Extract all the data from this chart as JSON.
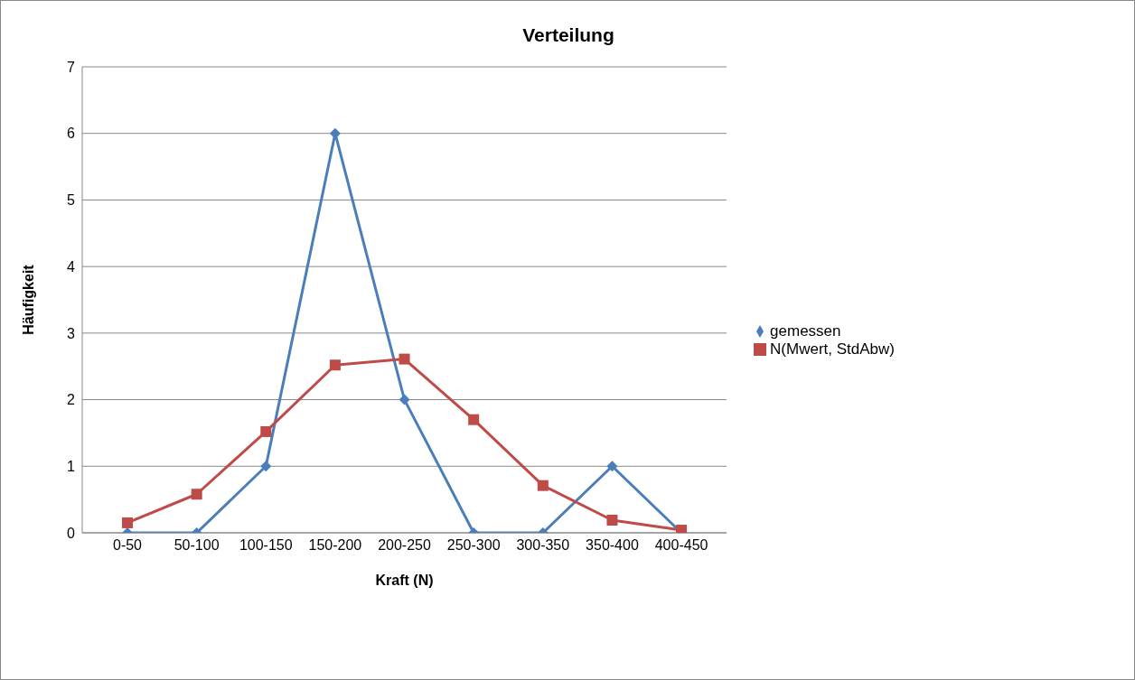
{
  "chart_data": {
    "type": "line",
    "title": "Verteilung",
    "xlabel": "Kraft (N)",
    "ylabel": "Häufigkeit",
    "categories": [
      "0-50",
      "50-100",
      "100-150",
      "150-200",
      "200-250",
      "250-300",
      "300-350",
      "350-400",
      "400-450"
    ],
    "series": [
      {
        "name": "gemessen",
        "color": "#4a7ebb",
        "marker": "diamond",
        "values": [
          0,
          0,
          1,
          6,
          2,
          0,
          0,
          1,
          0
        ]
      },
      {
        "name": "N(Mwert, StdAbw)",
        "color": "#be4b48",
        "marker": "square",
        "values": [
          0.15,
          0.58,
          1.52,
          2.52,
          2.61,
          1.7,
          0.71,
          0.19,
          0.04
        ]
      }
    ],
    "ylim": [
      0,
      7
    ],
    "yticks": [
      0,
      1,
      2,
      3,
      4,
      5,
      6,
      7
    ],
    "grid": "y",
    "legend": "right",
    "line_style": "solid"
  }
}
